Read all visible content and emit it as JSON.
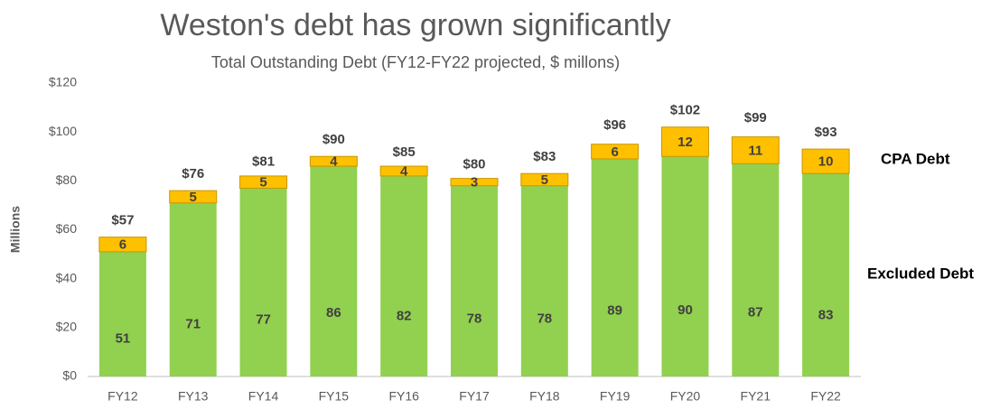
{
  "chart_data": {
    "type": "stacked_bar",
    "title": "Weston's debt has grown significantly",
    "subtitle": "Total Outstanding Debt (FY12-FY22 projected, $ millons)",
    "y_axis_label": "Millions",
    "categories": [
      "FY12",
      "FY13",
      "FY14",
      "FY15",
      "FY16",
      "FY17",
      "FY18",
      "FY19",
      "FY20",
      "FY21",
      "FY22"
    ],
    "series": [
      {
        "name": "Excluded Debt",
        "color": "#92d050",
        "values": [
          51,
          71,
          77,
          86,
          82,
          78,
          78,
          89,
          90,
          87,
          83
        ]
      },
      {
        "name": "CPA Debt",
        "color": "#ffc000",
        "values": [
          6,
          5,
          5,
          4,
          4,
          3,
          5,
          6,
          12,
          11,
          10
        ]
      }
    ],
    "totals": [
      57,
      76,
      81,
      90,
      85,
      80,
      83,
      96,
      102,
      99,
      93
    ],
    "total_labels": [
      "$57",
      "$76",
      "$81",
      "$90",
      "$85",
      "$80",
      "$83",
      "$96",
      "$102",
      "$99",
      "$93"
    ],
    "ylim": [
      0,
      120
    ],
    "yticks": [
      {
        "value": 0,
        "label": "$0"
      },
      {
        "value": 20,
        "label": "$20"
      },
      {
        "value": 40,
        "label": "$40"
      },
      {
        "value": 60,
        "label": "$60"
      },
      {
        "value": 80,
        "label": "$80"
      },
      {
        "value": 100,
        "label": "$100"
      },
      {
        "value": 120,
        "label": "$120"
      }
    ],
    "grid": false
  }
}
